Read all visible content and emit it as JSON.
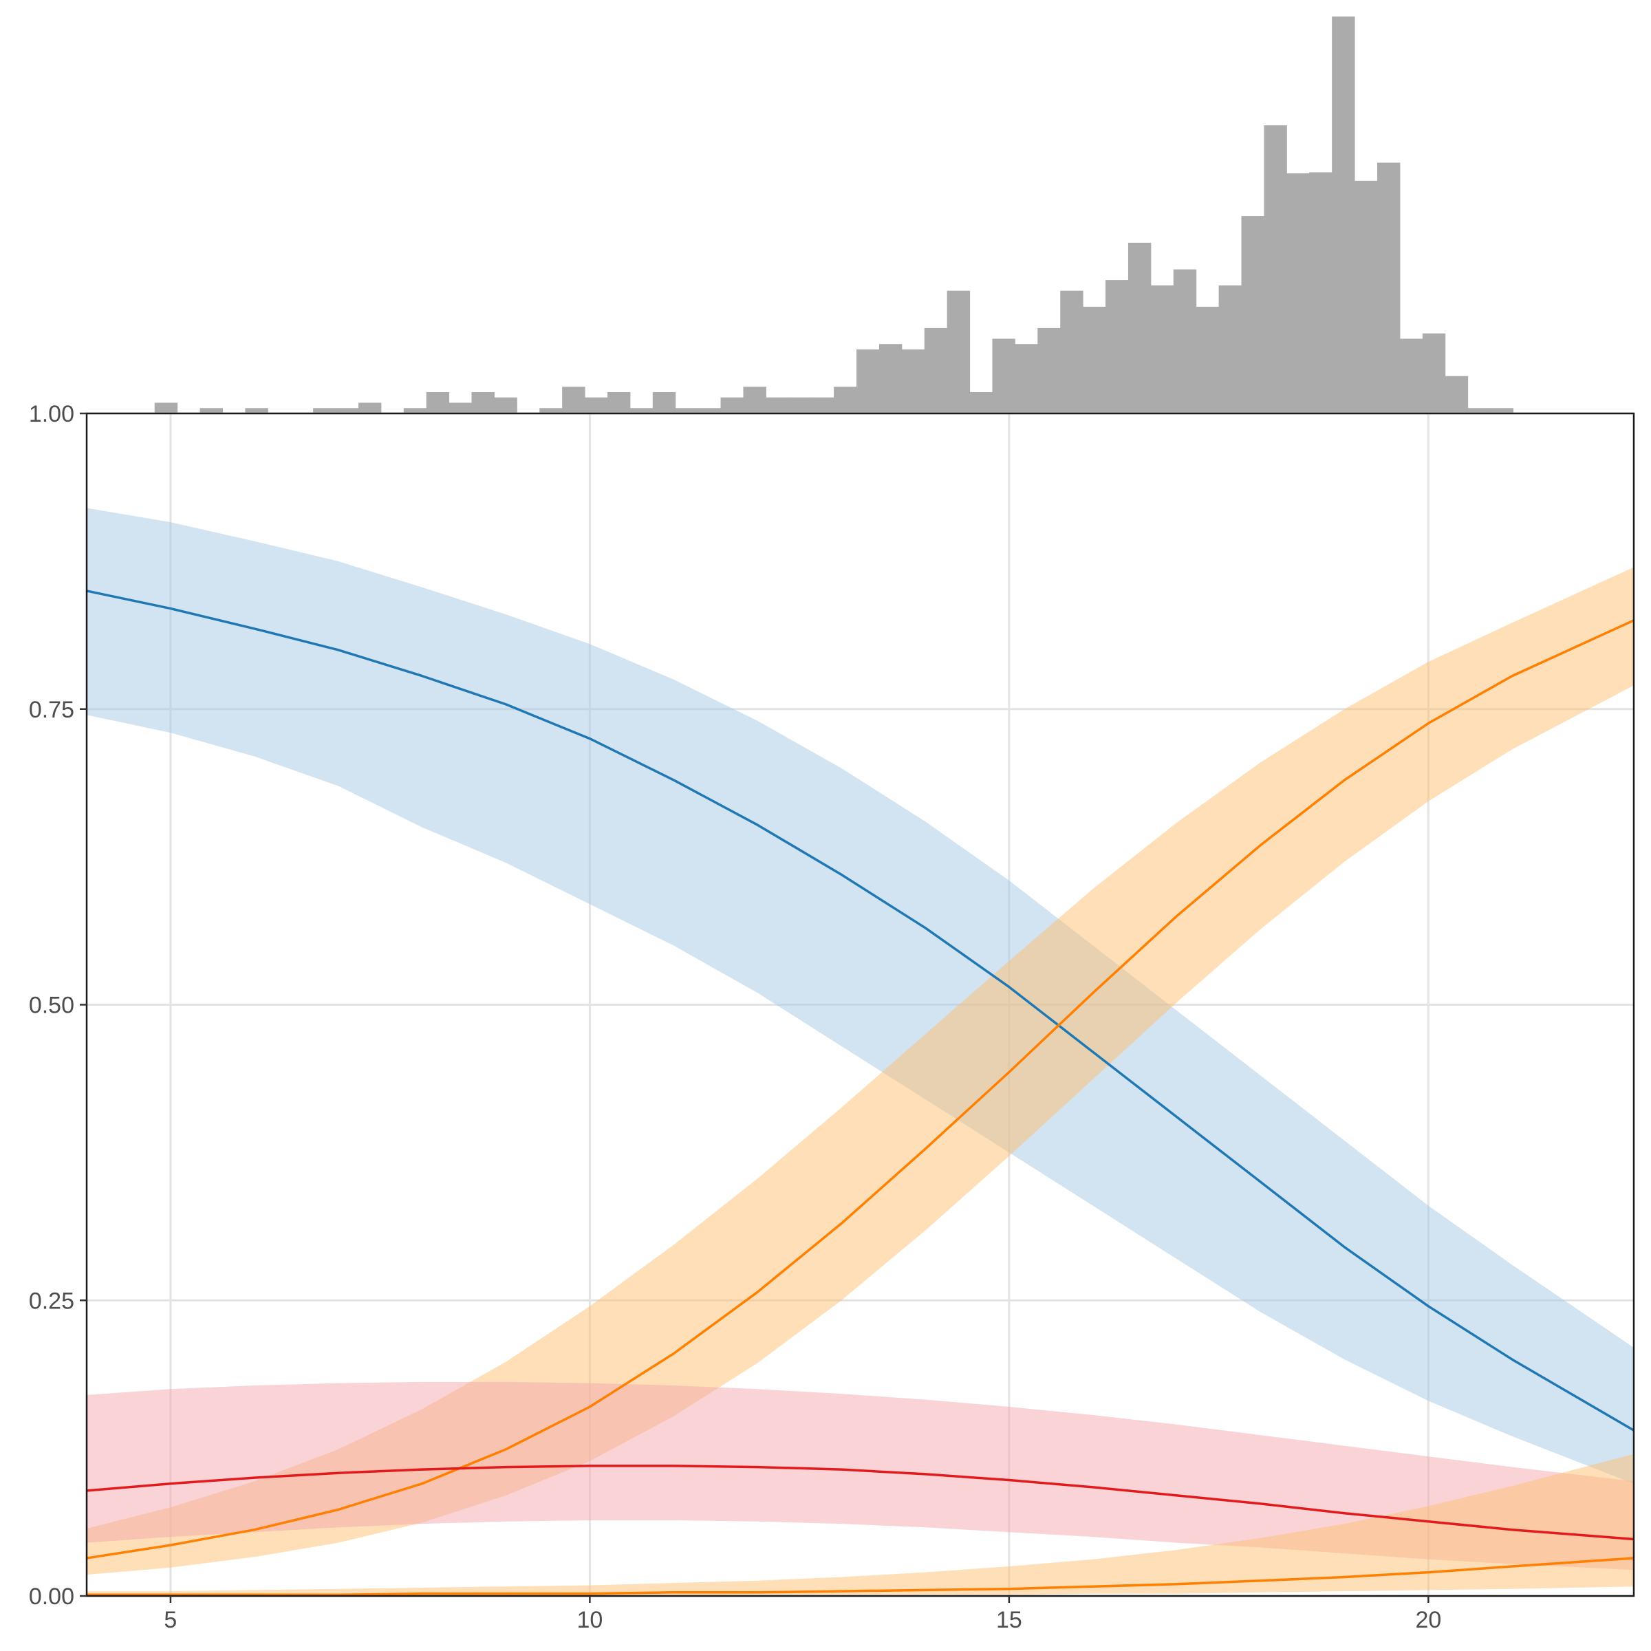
{
  "chart_data": [
    {
      "type": "bar",
      "role": "marginal-histogram",
      "color": "#ababab",
      "bin_width": 0.27,
      "x_start": 4.0,
      "counts": [
        0,
        0,
        0,
        0.5,
        0,
        0.25,
        0,
        0.25,
        0,
        0,
        0.25,
        0.25,
        0.5,
        0,
        0.25,
        1.0,
        0.5,
        1.0,
        0.75,
        0,
        0.25,
        1.25,
        0.75,
        1.0,
        0.25,
        1.0,
        0.25,
        0.25,
        0.75,
        1.25,
        0.75,
        0.75,
        0.75,
        1.25,
        3.0,
        3.25,
        3.0,
        4.0,
        5.75,
        1.0,
        3.5,
        3.25,
        4.0,
        5.75,
        5.0,
        6.25,
        8.0,
        6.0,
        6.75,
        5.0,
        6.0,
        9.25,
        13.5,
        11.25,
        11.3,
        18.6,
        10.9,
        11.75,
        3.5,
        3.75,
        1.75,
        0.25,
        0.25
      ]
    },
    {
      "type": "line",
      "x_ticks": [
        5,
        10,
        15,
        20
      ],
      "x_tick_labels": [
        "5",
        "10",
        "15",
        "20"
      ],
      "y_ticks": [
        0,
        0.25,
        0.5,
        0.75,
        1.0
      ],
      "y_tick_labels": [
        "0.00",
        "0.25",
        "0.50",
        "0.75",
        "1.00"
      ],
      "xlim": [
        4.0,
        22.45
      ],
      "ylim": [
        0,
        1.0
      ],
      "grid": true,
      "x": [
        4,
        5,
        6,
        7,
        8,
        9,
        10,
        11,
        12,
        13,
        14,
        15,
        16,
        17,
        18,
        19,
        20,
        21,
        22.45
      ],
      "series": [
        {
          "color": "#1f78b4",
          "band_color": "#a6c8e3",
          "values": [
            0.85,
            0.835,
            0.818,
            0.8,
            0.778,
            0.754,
            0.725,
            0.69,
            0.652,
            0.61,
            0.565,
            0.515,
            0.46,
            0.405,
            0.35,
            0.295,
            0.245,
            0.2,
            0.14
          ],
          "lower": [
            0.745,
            0.73,
            0.71,
            0.685,
            0.65,
            0.62,
            0.585,
            0.55,
            0.51,
            0.465,
            0.42,
            0.375,
            0.33,
            0.285,
            0.24,
            0.2,
            0.165,
            0.135,
            0.095
          ],
          "upper": [
            0.92,
            0.908,
            0.892,
            0.875,
            0.853,
            0.83,
            0.805,
            0.775,
            0.74,
            0.7,
            0.655,
            0.605,
            0.55,
            0.495,
            0.44,
            0.385,
            0.33,
            0.28,
            0.21
          ]
        },
        {
          "color": "#ff7f00",
          "band_color": "#fdbf6f",
          "values": [
            0.032,
            0.043,
            0.056,
            0.073,
            0.095,
            0.124,
            0.16,
            0.205,
            0.257,
            0.315,
            0.378,
            0.443,
            0.51,
            0.575,
            0.635,
            0.69,
            0.738,
            0.778,
            0.825
          ],
          "lower": [
            0.018,
            0.024,
            0.033,
            0.045,
            0.062,
            0.085,
            0.114,
            0.152,
            0.197,
            0.25,
            0.309,
            0.372,
            0.437,
            0.502,
            0.564,
            0.621,
            0.672,
            0.716,
            0.77
          ],
          "upper": [
            0.057,
            0.075,
            0.097,
            0.124,
            0.158,
            0.198,
            0.245,
            0.297,
            0.353,
            0.413,
            0.475,
            0.537,
            0.598,
            0.654,
            0.705,
            0.75,
            0.79,
            0.823,
            0.87
          ]
        },
        {
          "color": "#e31a1c",
          "band_color": "#f4a7ad",
          "values": [
            0.089,
            0.095,
            0.1,
            0.104,
            0.107,
            0.109,
            0.11,
            0.11,
            0.109,
            0.107,
            0.103,
            0.098,
            0.092,
            0.085,
            0.078,
            0.07,
            0.063,
            0.056,
            0.048
          ],
          "lower": [
            0.045,
            0.05,
            0.054,
            0.058,
            0.061,
            0.063,
            0.064,
            0.064,
            0.063,
            0.061,
            0.058,
            0.054,
            0.05,
            0.045,
            0.041,
            0.036,
            0.031,
            0.027,
            0.022
          ],
          "upper": [
            0.17,
            0.175,
            0.178,
            0.18,
            0.181,
            0.181,
            0.18,
            0.178,
            0.175,
            0.171,
            0.166,
            0.16,
            0.153,
            0.145,
            0.136,
            0.127,
            0.118,
            0.109,
            0.097
          ]
        },
        {
          "color": "#ff7f00",
          "band_color": "#fdbf6f",
          "values": [
            0.001,
            0.001,
            0.001,
            0.001,
            0.002,
            0.002,
            0.002,
            0.003,
            0.003,
            0.004,
            0.005,
            0.006,
            0.008,
            0.01,
            0.013,
            0.016,
            0.02,
            0.025,
            0.032
          ],
          "lower": [
            0.0,
            0.0,
            0.0,
            0.0,
            0.0,
            0.0,
            0.0,
            0.0,
            0.001,
            0.001,
            0.001,
            0.001,
            0.002,
            0.002,
            0.003,
            0.004,
            0.005,
            0.006,
            0.008
          ],
          "upper": [
            0.004,
            0.004,
            0.005,
            0.006,
            0.007,
            0.008,
            0.009,
            0.011,
            0.013,
            0.016,
            0.02,
            0.025,
            0.031,
            0.039,
            0.049,
            0.061,
            0.076,
            0.093,
            0.12
          ]
        }
      ]
    }
  ]
}
